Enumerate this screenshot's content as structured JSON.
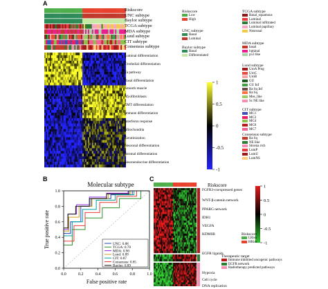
{
  "panel_a": {
    "letter": "A",
    "annotation_rows": [
      "Riskscore",
      "UNC subtype",
      "Baylor subtype",
      "TCGA subtype",
      "MDA subtype",
      "Lund subtype",
      "CIT subtype",
      "Consensus subtype"
    ],
    "pathways": [
      "Luminal differentiation",
      "Urothelial differentiation",
      "Ta pathway",
      "Basal differentiation",
      "Smooth muscle",
      "Myofibroblasts",
      "EMT differentiation",
      "Immune differentiation",
      "Interferon response",
      "Mitochondria",
      "Keratinization",
      "Neuronal differentiation",
      "Stromal differentiation",
      "Neuroendocrine differentiation"
    ],
    "colorbar_ticks": [
      "1",
      "0.5",
      "0",
      "-0.5",
      "-1"
    ],
    "legends": {
      "riskscore": {
        "title": "Riskscore",
        "items": [
          {
            "label": "Low",
            "color": "#4dae4a"
          },
          {
            "label": "High",
            "color": "#e8412d"
          }
        ]
      },
      "unc": {
        "title": "UNC subtype",
        "items": [
          {
            "label": "Basal",
            "color": "#2e8b57"
          },
          {
            "label": "Luminal",
            "color": "#c0392b"
          }
        ]
      },
      "baylor": {
        "title": "Baylor subtype",
        "items": [
          {
            "label": "Basal",
            "color": "#2e8b57"
          },
          {
            "label": "Differentiated",
            "color": "#c7e9a3"
          }
        ]
      },
      "tcga": {
        "title": "TCGA subtype",
        "items": [
          {
            "label": "Basal_squamous",
            "color": "#8b1a1a"
          },
          {
            "label": "Luminal",
            "color": "#e63c3c"
          },
          {
            "label": "Luminal infiltrated",
            "color": "#2e7d32"
          },
          {
            "label": "Luminal papillary",
            "color": "#f7a6c0"
          },
          {
            "label": "Neuronal",
            "color": "#f2c94c"
          }
        ]
      },
      "mda": {
        "title": "MDA subtype",
        "items": [
          {
            "label": "basal",
            "color": "#c0392b"
          },
          {
            "label": "luminal",
            "color": "#e91e8c"
          },
          {
            "label": "p53 like",
            "color": "#a5d6a7"
          }
        ]
      },
      "lund": {
        "title": "Lund subtype",
        "items": [
          {
            "label": "UroA Prog",
            "color": "#9e1b1b"
          },
          {
            "label": "UroC",
            "color": "#e74c3c"
          },
          {
            "label": "UroB",
            "color": "#f4a4a4"
          },
          {
            "label": "GU",
            "color": "#1b5e20"
          },
          {
            "label": "GU Inf",
            "color": "#43a047"
          },
          {
            "label": "Ba Sq Inf",
            "color": "#6d4c41"
          },
          {
            "label": "Ba Sq",
            "color": "#ff7043"
          },
          {
            "label": "Mes_like",
            "color": "#9ccc65"
          },
          {
            "label": "Sc NE like",
            "color": "#f48fb1"
          }
        ]
      },
      "cit": {
        "title": "CIT subtype",
        "items": [
          {
            "label": "MC1",
            "color": "#3f51b5"
          },
          {
            "label": "MC3",
            "color": "#e91e63"
          },
          {
            "label": "MC4",
            "color": "#8bc34a"
          },
          {
            "label": "MC6",
            "color": "#b71c1c"
          },
          {
            "label": "MC7",
            "color": "#f06292"
          }
        ]
      },
      "consensus": {
        "title": "Consensus subtype",
        "items": [
          {
            "label": "Ba Sq",
            "color": "#c0392b"
          },
          {
            "label": "NE like",
            "color": "#2e7d32"
          },
          {
            "label": "Stroma rich",
            "color": "#f48fb1"
          },
          {
            "label": "LumP",
            "color": "#e53935"
          },
          {
            "label": "LumU",
            "color": "#9e1b1b"
          },
          {
            "label": "LumNS",
            "color": "#ffcc80"
          }
        ]
      }
    }
  },
  "panel_b": {
    "letter": "B",
    "title": "Molecular subtype",
    "xlabel": "False positive rate",
    "ylabel": "True positive rate",
    "ticks": [
      "0.0",
      "0.2",
      "0.4",
      "0.6",
      "0.8",
      "1.0"
    ]
  },
  "chart_data": {
    "type": "line",
    "title": "Molecular subtype",
    "xlabel": "False positive rate",
    "ylabel": "True positive rate",
    "xlim": [
      0,
      1
    ],
    "ylim": [
      0,
      1
    ],
    "legend_position": "bottom-right",
    "series": [
      {
        "name": "UNC: 0.88",
        "color": "#1f3fbf",
        "x": [
          0,
          0,
          0.08,
          0.08,
          0.2,
          0.2,
          0.32,
          0.32,
          0.55,
          0.55,
          0.8,
          0.8,
          1
        ],
        "y": [
          0,
          0.45,
          0.45,
          0.6,
          0.6,
          0.8,
          0.8,
          0.9,
          0.9,
          0.95,
          0.95,
          1,
          1
        ]
      },
      {
        "name": "TCGA: 0.78",
        "color": "#2a8f2a",
        "x": [
          0,
          0,
          0.1,
          0.1,
          0.25,
          0.25,
          0.45,
          0.45,
          0.65,
          0.65,
          0.9,
          0.9,
          1
        ],
        "y": [
          0,
          0.3,
          0.3,
          0.5,
          0.5,
          0.65,
          0.65,
          0.78,
          0.78,
          0.9,
          0.9,
          1,
          1
        ]
      },
      {
        "name": "MDA: 0.90",
        "color": "#8a2be2",
        "x": [
          0,
          0,
          0.05,
          0.05,
          0.15,
          0.15,
          0.3,
          0.3,
          0.5,
          0.5,
          0.75,
          0.75,
          1
        ],
        "y": [
          0,
          0.5,
          0.5,
          0.7,
          0.7,
          0.82,
          0.82,
          0.92,
          0.92,
          0.97,
          0.97,
          1,
          1
        ]
      },
      {
        "name": "Lund: 0.89",
        "color": "#d4a017",
        "x": [
          0,
          0,
          0.06,
          0.06,
          0.18,
          0.18,
          0.33,
          0.33,
          0.52,
          0.52,
          0.78,
          0.78,
          1
        ],
        "y": [
          0,
          0.48,
          0.48,
          0.66,
          0.66,
          0.8,
          0.8,
          0.9,
          0.9,
          0.96,
          0.96,
          1,
          1
        ]
      },
      {
        "name": "CIT: 0.87",
        "color": "#00a0a0",
        "x": [
          0,
          0,
          0.1,
          0.1,
          0.22,
          0.22,
          0.38,
          0.38,
          0.6,
          0.6,
          0.82,
          0.82,
          1
        ],
        "y": [
          0,
          0.42,
          0.42,
          0.6,
          0.6,
          0.76,
          0.76,
          0.88,
          0.88,
          0.95,
          0.95,
          1,
          1
        ]
      },
      {
        "name": "Consensus: 0.85",
        "color": "#e53935",
        "x": [
          0,
          0,
          0.12,
          0.12,
          0.25,
          0.25,
          0.42,
          0.42,
          0.62,
          0.62,
          0.85,
          0.85,
          1
        ],
        "y": [
          0,
          0.35,
          0.35,
          0.55,
          0.55,
          0.72,
          0.72,
          0.85,
          0.85,
          0.93,
          0.93,
          1,
          1
        ]
      },
      {
        "name": "Baylor: 0.89",
        "color": "#111111",
        "x": [
          0,
          0,
          0.05,
          0.05,
          0.14,
          0.14,
          0.3,
          0.3,
          0.5,
          0.5,
          0.76,
          0.76,
          1
        ],
        "y": [
          0,
          0.52,
          0.52,
          0.7,
          0.7,
          0.8,
          0.8,
          0.9,
          0.9,
          0.96,
          0.96,
          1,
          1
        ]
      }
    ]
  },
  "panel_c": {
    "letter": "C",
    "riskscore_label": "Riskscore",
    "gene_labels": [
      {
        "key": "g1",
        "text": "FGFR3-coexpressed genes"
      },
      {
        "key": "g2",
        "text": "WNT-β-catenin network"
      },
      {
        "key": "g3",
        "text": "PPARG network"
      },
      {
        "key": "g4",
        "text": "IDH1"
      },
      {
        "key": "g5",
        "text": "VEGFA"
      },
      {
        "key": "g6",
        "text": "KDM6B"
      },
      {
        "key": "g7",
        "text": "EGFR ligands"
      },
      {
        "key": "g8",
        "text": "Hypoxia"
      },
      {
        "key": "g9",
        "text": "Cell cycle"
      },
      {
        "key": "g10",
        "text": "DNA replication"
      }
    ],
    "colorbar_ticks": [
      "1",
      "0.5",
      "0",
      "-0.5",
      "-1"
    ],
    "risk_legend": {
      "title": "Riskscore",
      "items": [
        {
          "label": "LRisk",
          "color": "#4dae4a"
        },
        {
          "label": "HRisk",
          "color": "#e8412d"
        }
      ]
    },
    "target_legend": {
      "title": "Therapeutic target",
      "items": [
        {
          "label": "Immune inhibited oncogenic pathways",
          "color": "#b71c1c"
        },
        {
          "label": "EGFR network",
          "color": "#2e7d32"
        },
        {
          "label": "Radiotherapy predicted pathways",
          "color": "#f48fb1"
        }
      ]
    }
  }
}
